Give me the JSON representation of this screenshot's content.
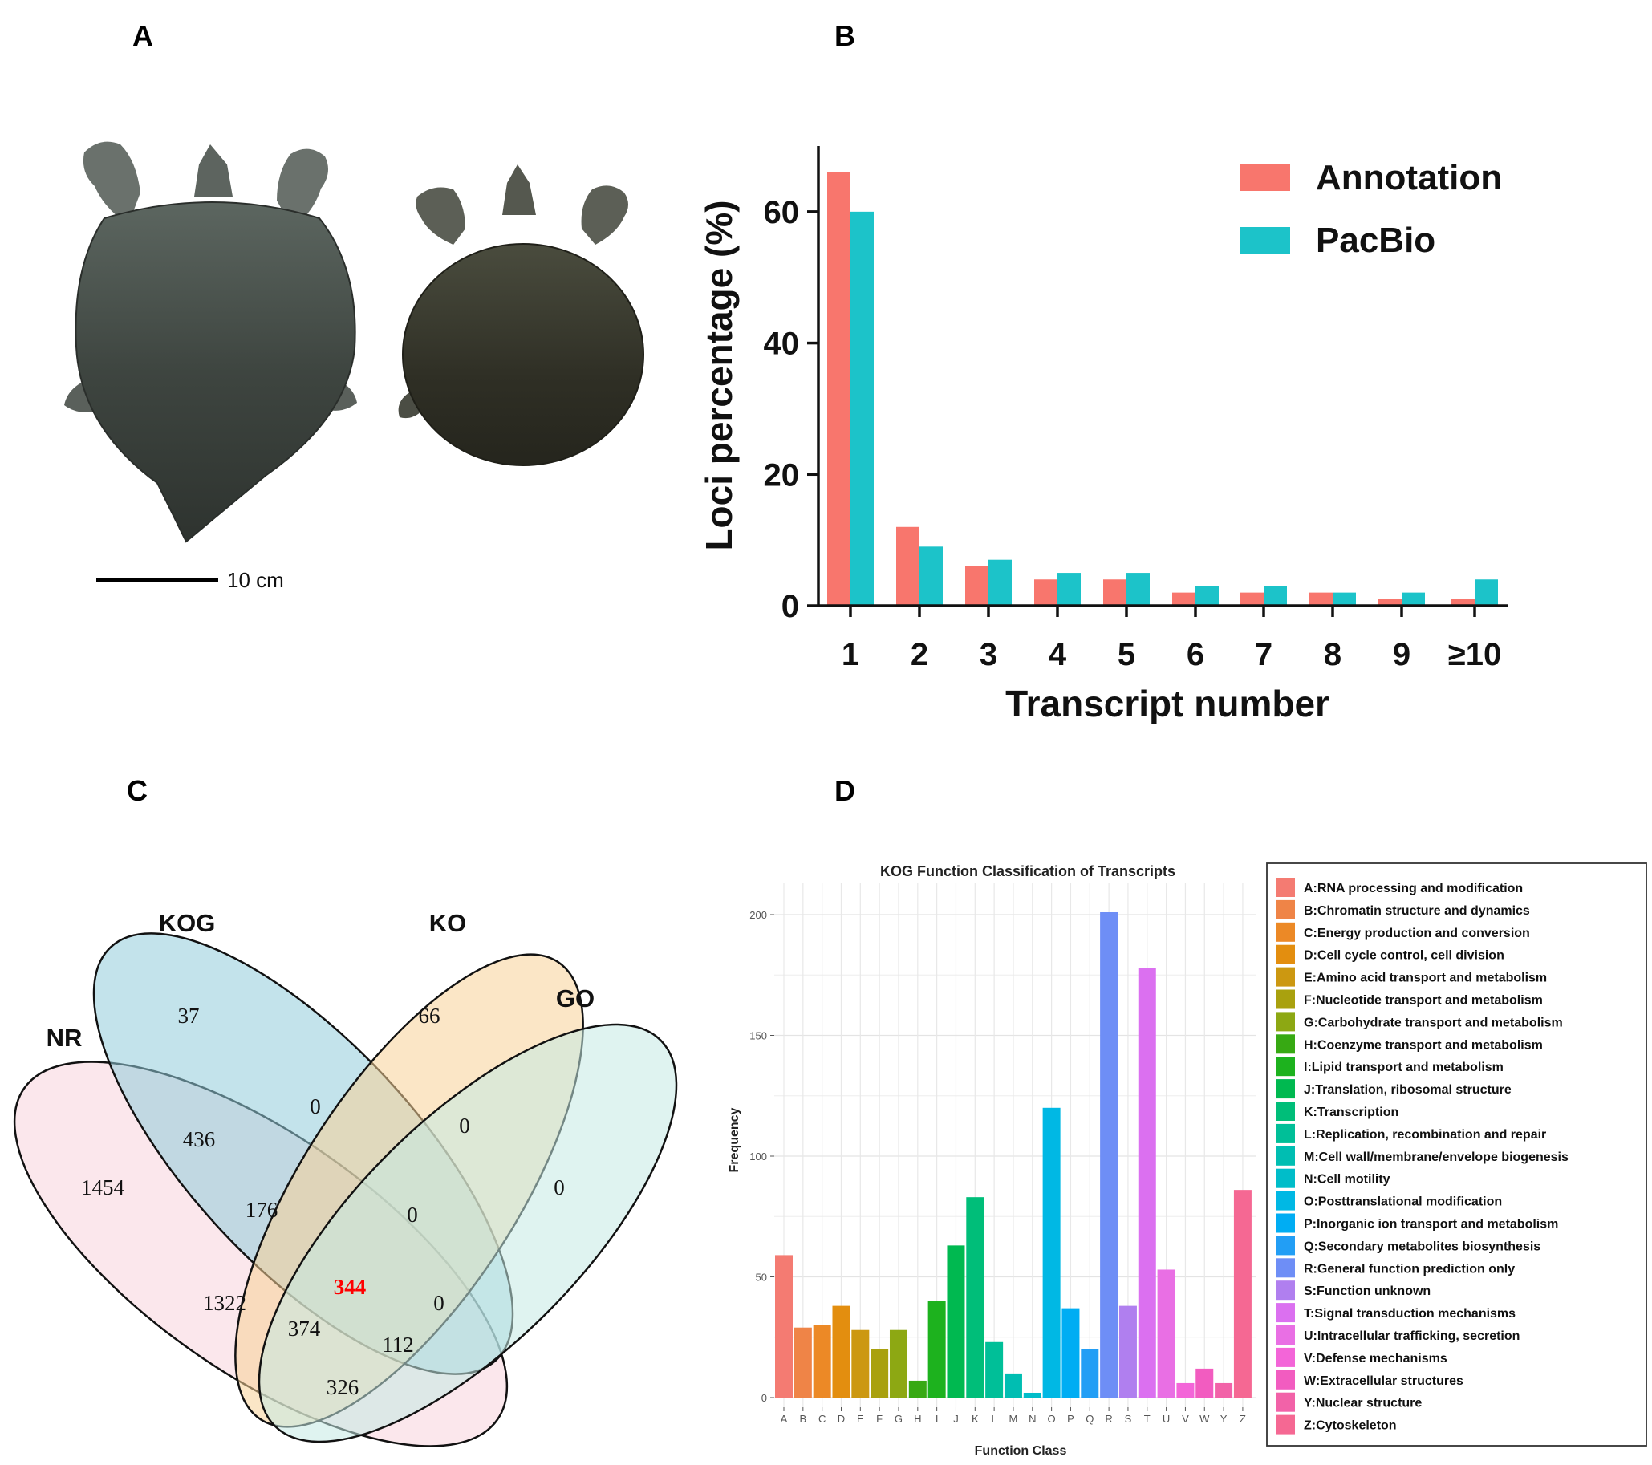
{
  "panels": {
    "a": "A",
    "b": "B",
    "c": "C",
    "d": "D"
  },
  "photo": {
    "scale_bar_label": "10 cm"
  },
  "venn": {
    "sets": {
      "nr": "NR",
      "kog": "KOG",
      "ko": "KO",
      "go": "GO"
    },
    "colors": {
      "nr": "#F8D3DC",
      "kog": "#92CCDA",
      "ko": "#F8D197",
      "go": "#C4E9E4"
    },
    "regions": [
      "37",
      "66",
      "0",
      "0",
      "0",
      "436",
      "1454",
      "176",
      "0",
      "344",
      "1322",
      "0",
      "374",
      "112",
      "326"
    ],
    "highlight_color": "#FF0000"
  },
  "chart_data": [
    {
      "type": "bar",
      "title": "",
      "xlabel": "Transcript number",
      "ylabel": "Loci percentage (%)",
      "categories": [
        "1",
        "2",
        "3",
        "4",
        "5",
        "6",
        "7",
        "8",
        "9",
        "≥10"
      ],
      "yticks": [
        "0",
        "20",
        "40",
        "60"
      ],
      "ylim": [
        0,
        70
      ],
      "legend_position": "top-right",
      "series": [
        {
          "name": "Annotation",
          "color": "#F8766D",
          "values": [
            66,
            12,
            6,
            4,
            4,
            2,
            2,
            2,
            1,
            1
          ]
        },
        {
          "name": "PacBio",
          "color": "#1CC3C9",
          "values": [
            60,
            9,
            7,
            5,
            5,
            3,
            3,
            2,
            2,
            4
          ]
        }
      ]
    },
    {
      "type": "bar",
      "title": "KOG Function Classification of Transcripts",
      "xlabel": "Function Class",
      "ylabel": "Frequency",
      "categories": [
        "A",
        "B",
        "C",
        "D",
        "E",
        "F",
        "G",
        "H",
        "I",
        "J",
        "K",
        "L",
        "M",
        "N",
        "O",
        "P",
        "Q",
        "R",
        "S",
        "T",
        "U",
        "V",
        "W",
        "Y",
        "Z"
      ],
      "values": [
        59,
        29,
        30,
        38,
        28,
        20,
        28,
        7,
        40,
        63,
        83,
        23,
        10,
        2,
        120,
        37,
        20,
        201,
        38,
        178,
        53,
        6,
        12,
        6,
        86
      ],
      "yticks": [
        "0",
        "50",
        "100",
        "150",
        "200"
      ],
      "ylim": [
        0,
        210
      ],
      "grid": true,
      "legend_position": "right",
      "colors": [
        "#F47B72",
        "#EF8447",
        "#EC8926",
        "#E38E0F",
        "#CC9811",
        "#A9A10E",
        "#8DA813",
        "#37A913",
        "#1DB21E",
        "#00B950",
        "#00BE79",
        "#00BF98",
        "#00BEB2",
        "#00BDC9",
        "#00B8E4",
        "#00ADF3",
        "#229EF5",
        "#6E8EF6",
        "#B07FEF",
        "#DB70F0",
        "#E96FE4",
        "#F365D8",
        "#F25CC0",
        "#F262A8",
        "#F56893"
      ],
      "legend": [
        "A:RNA processing and modification",
        "B:Chromatin structure and dynamics",
        "C:Energy production and conversion",
        "D:Cell cycle control, cell division",
        "E:Amino acid transport and metabolism",
        "F:Nucleotide transport and metabolism",
        "G:Carbohydrate transport and metabolism",
        "H:Coenzyme transport and metabolism",
        "I:Lipid transport and metabolism",
        "J:Translation, ribosomal structure",
        "K:Transcription",
        "L:Replication, recombination and repair",
        "M:Cell wall/membrane/envelope biogenesis",
        "N:Cell motility",
        "O:Posttranslational modification",
        "P:Inorganic ion transport and metabolism",
        "Q:Secondary metabolites biosynthesis",
        "R:General function prediction only",
        "S:Function unknown",
        "T:Signal transduction mechanisms",
        "U:Intracellular trafficking, secretion",
        "V:Defense mechanisms",
        "W:Extracellular structures",
        "Y:Nuclear structure",
        "Z:Cytoskeleton"
      ]
    }
  ]
}
